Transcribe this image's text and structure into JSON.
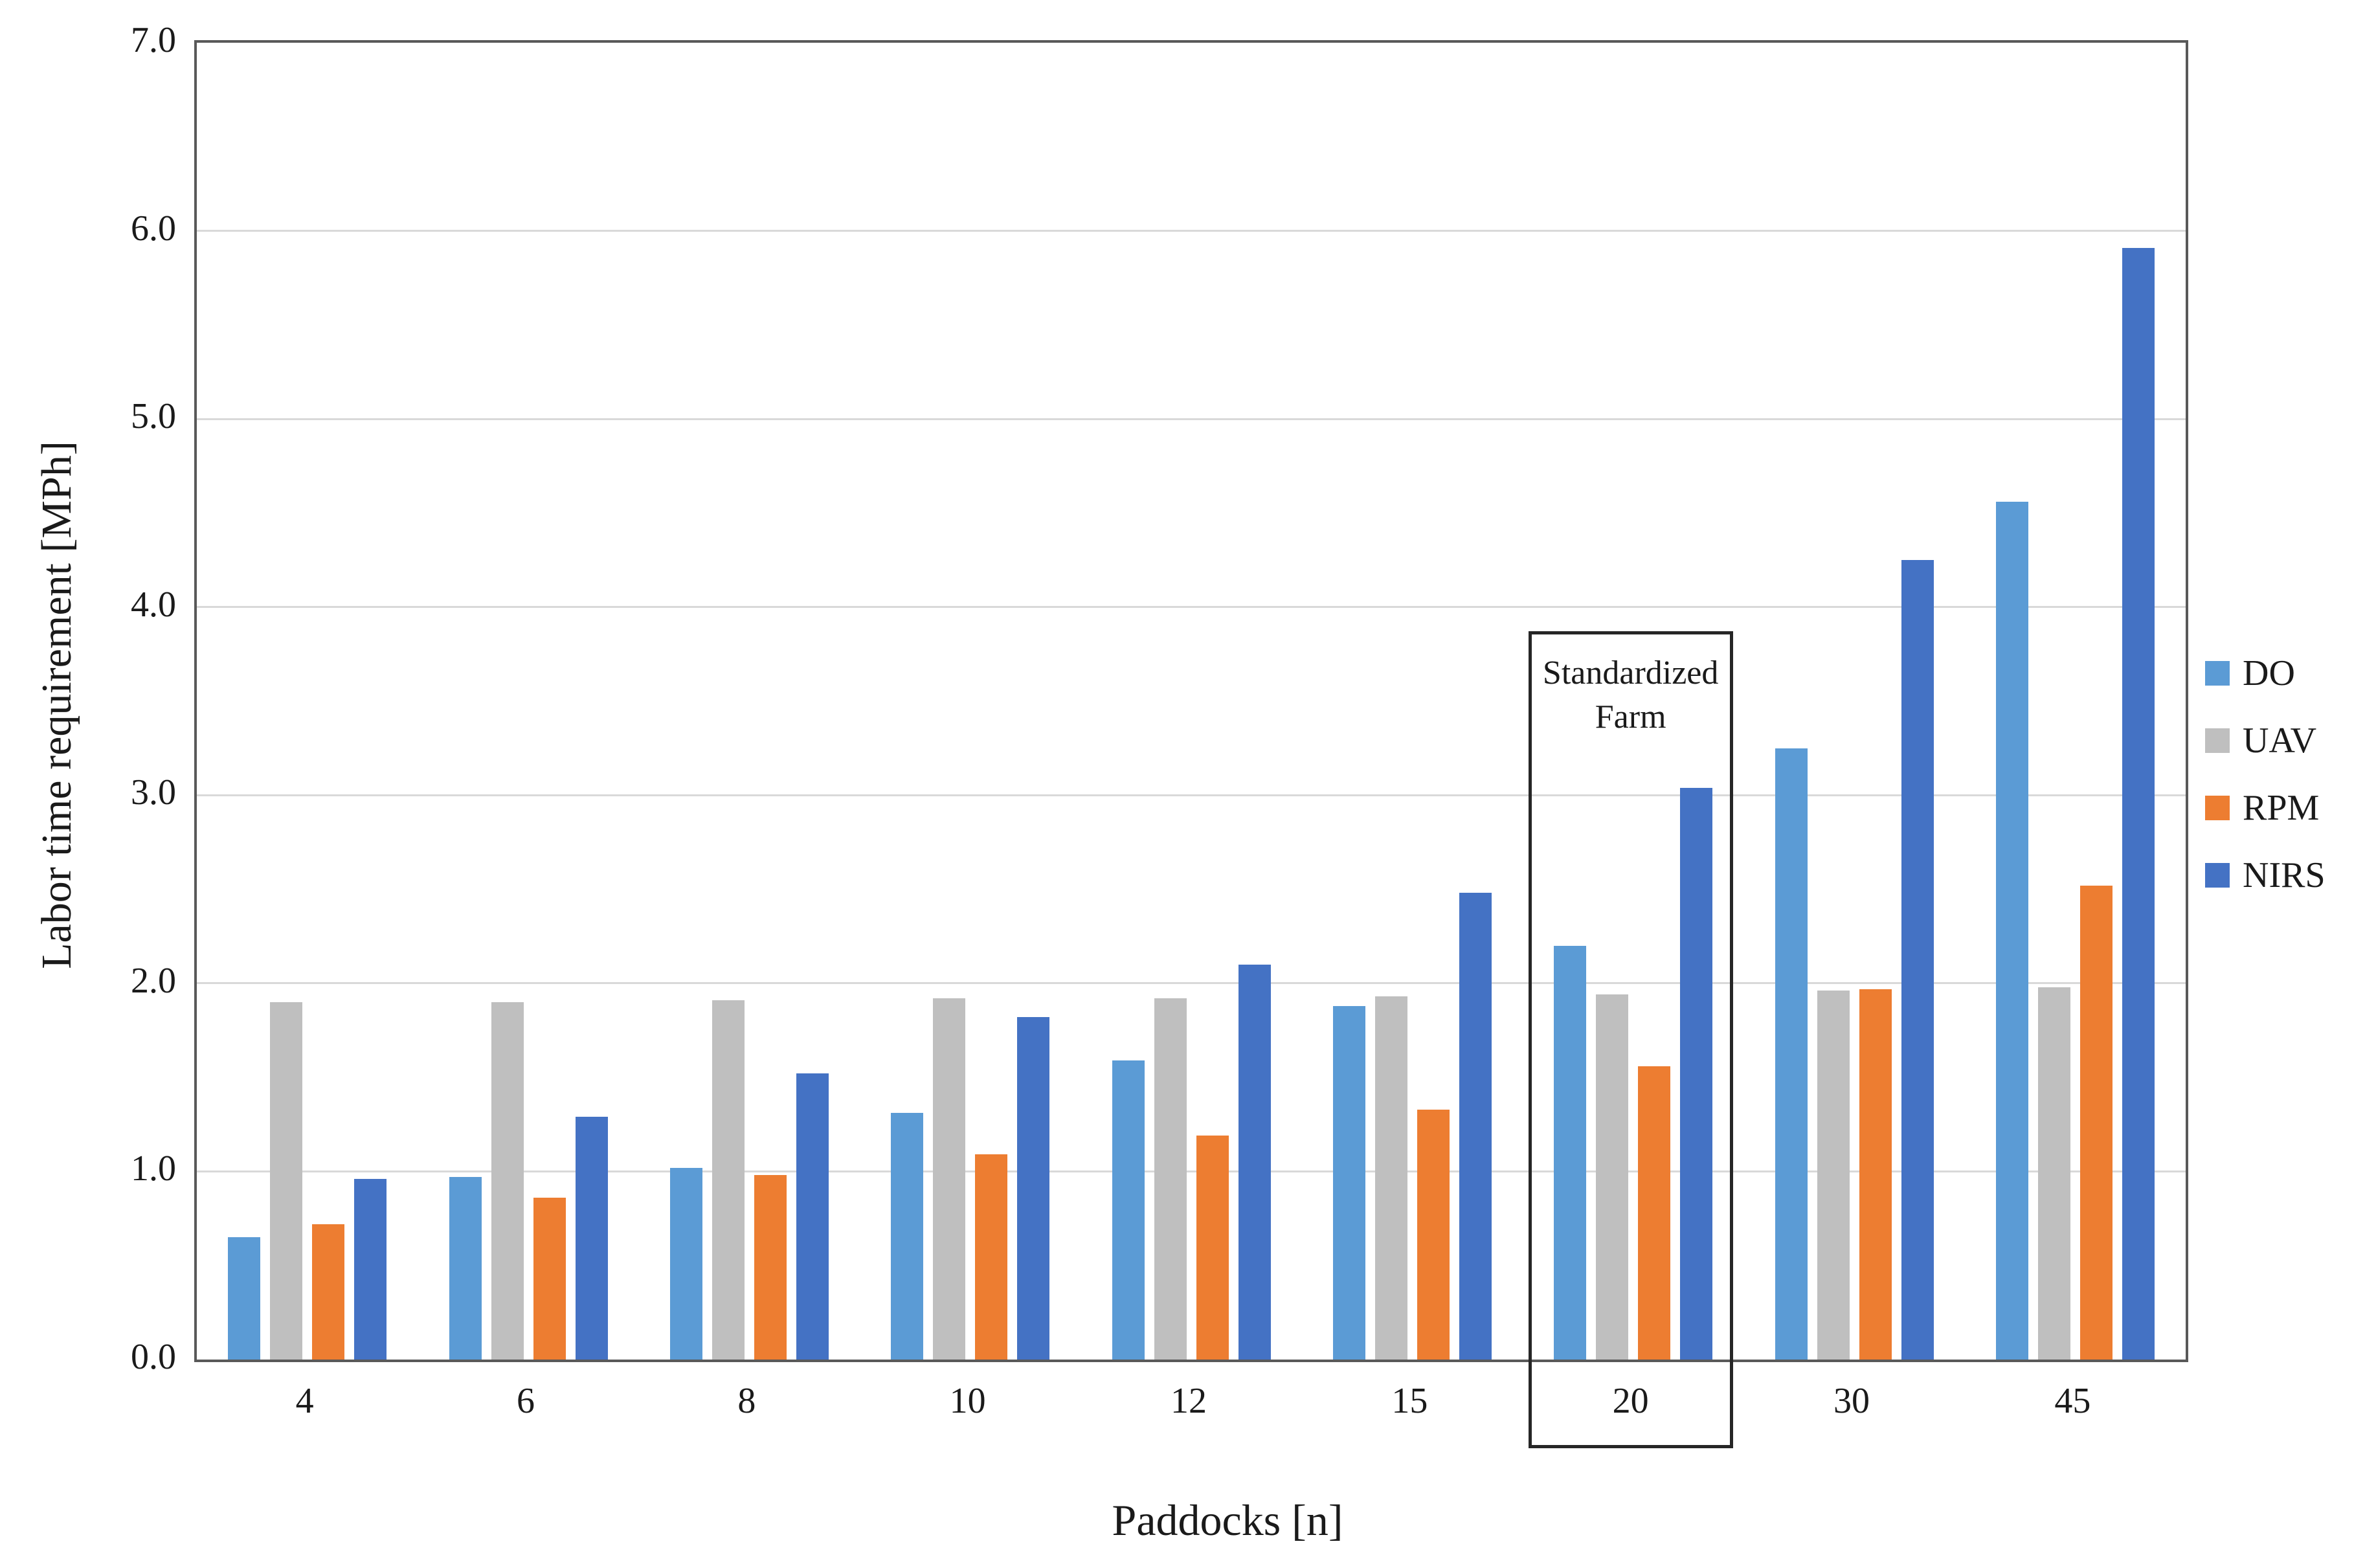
{
  "figure": {
    "background": "#ffffff",
    "axis_color": "#595959",
    "gridline_color": "#d9d9d9",
    "text_color": "#1a1a1a"
  },
  "chart_data": {
    "type": "bar",
    "title": "",
    "xlabel": "Paddocks [n]",
    "ylabel": "Labor time requirement [MPh]",
    "categories": [
      "4",
      "6",
      "8",
      "10",
      "12",
      "15",
      "20",
      "30",
      "45"
    ],
    "series": [
      {
        "name": "DO",
        "color": "#5B9BD5",
        "values": [
          0.65,
          0.97,
          1.02,
          1.31,
          1.59,
          1.88,
          2.2,
          3.25,
          4.56
        ]
      },
      {
        "name": "UAV",
        "color": "#BFBFBF",
        "values": [
          1.9,
          1.9,
          1.91,
          1.92,
          1.92,
          1.93,
          1.94,
          1.96,
          1.98
        ]
      },
      {
        "name": "RPM",
        "color": "#ED7D31",
        "values": [
          0.72,
          0.86,
          0.98,
          1.09,
          1.19,
          1.33,
          1.56,
          1.97,
          2.52
        ]
      },
      {
        "name": "NIRS",
        "color": "#4472C4",
        "values": [
          0.96,
          1.29,
          1.52,
          1.82,
          2.1,
          2.48,
          3.04,
          4.25,
          5.91
        ]
      }
    ],
    "ylim": [
      0.0,
      7.0
    ],
    "ytick_step": 1.0,
    "ytick_labels": [
      "0.0",
      "1.0",
      "2.0",
      "3.0",
      "4.0",
      "5.0",
      "6.0",
      "7.0"
    ],
    "grid": true,
    "legend_position": "right-center",
    "annotation": {
      "lines": [
        "Standardized",
        "Farm"
      ],
      "category": "20"
    }
  }
}
